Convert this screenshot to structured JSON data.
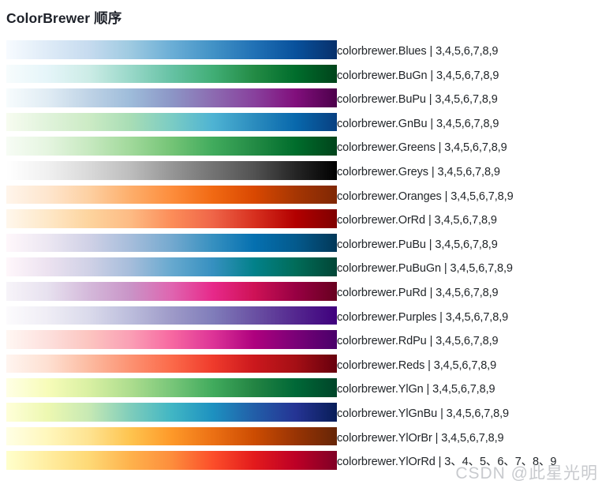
{
  "page": {
    "title": "ColorBrewer 顺序"
  },
  "watermark": {
    "text": "CSDN @此星光明"
  },
  "chart_data": {
    "type": "table",
    "title": "ColorBrewer 顺序",
    "legend_note": "each row = sequential colorbrewer ramp drawn light-to-dark, left-to-right",
    "palettes": [
      {
        "name": "colorbrewer.Blues",
        "label": "colorbrewer.Blues | 3,4,5,6,7,8,9",
        "classes": "3,4,5,6,7,8,9",
        "colors": [
          "#f7fbff",
          "#deebf7",
          "#c6dbef",
          "#9ecae1",
          "#6baed6",
          "#4292c6",
          "#2171b5",
          "#08519c",
          "#08306b"
        ]
      },
      {
        "name": "colorbrewer.BuGn",
        "label": "colorbrewer.BuGn | 3,4,5,6,7,8,9",
        "classes": "3,4,5,6,7,8,9",
        "colors": [
          "#f7fcfd",
          "#e5f5f9",
          "#ccece6",
          "#99d8c9",
          "#66c2a4",
          "#41ae76",
          "#238b45",
          "#006d2c",
          "#00441b"
        ]
      },
      {
        "name": "colorbrewer.BuPu",
        "label": "colorbrewer.BuPu | 3,4,5,6,7,8,9",
        "classes": "3,4,5,6,7,8,9",
        "colors": [
          "#f7fcfd",
          "#e0ecf4",
          "#bfd3e6",
          "#9ebcda",
          "#8c96c6",
          "#8c6bb1",
          "#88419d",
          "#810f7c",
          "#4d004b"
        ]
      },
      {
        "name": "colorbrewer.GnBu",
        "label": "colorbrewer.GnBu | 3,4,5,6,7,8,9",
        "classes": "3,4,5,6,7,8,9",
        "colors": [
          "#f7fcf0",
          "#e0f3db",
          "#ccebc5",
          "#a8ddb5",
          "#7bccc4",
          "#4eb3d3",
          "#2b8cbe",
          "#0868ac",
          "#084081"
        ]
      },
      {
        "name": "colorbrewer.Greens",
        "label": "colorbrewer.Greens | 3,4,5,6,7,8,9",
        "classes": "3,4,5,6,7,8,9",
        "colors": [
          "#f7fcf5",
          "#e5f5e0",
          "#c7e9c0",
          "#a1d99b",
          "#74c476",
          "#41ab5d",
          "#238b45",
          "#006d2c",
          "#00441b"
        ]
      },
      {
        "name": "colorbrewer.Greys",
        "label": "colorbrewer.Greys | 3,4,5,6,7,8,9",
        "classes": "3,4,5,6,7,8,9",
        "colors": [
          "#ffffff",
          "#f0f0f0",
          "#d9d9d9",
          "#bdbdbd",
          "#969696",
          "#737373",
          "#525252",
          "#252525",
          "#000000"
        ]
      },
      {
        "name": "colorbrewer.Oranges",
        "label": "colorbrewer.Oranges | 3,4,5,6,7,8,9",
        "classes": "3,4,5,6,7,8,9",
        "colors": [
          "#fff5eb",
          "#fee6ce",
          "#fdd0a2",
          "#fdae6b",
          "#fd8d3c",
          "#f16913",
          "#d94801",
          "#a63603",
          "#7f2704"
        ]
      },
      {
        "name": "colorbrewer.OrRd",
        "label": "colorbrewer.OrRd | 3,4,5,6,7,8,9",
        "classes": "3,4,5,6,7,8,9",
        "colors": [
          "#fff7ec",
          "#fee8c8",
          "#fdd49e",
          "#fdbb84",
          "#fc8d59",
          "#ef6548",
          "#d7301f",
          "#b30000",
          "#7f0000"
        ]
      },
      {
        "name": "colorbrewer.PuBu",
        "label": "colorbrewer.PuBu | 3,4,5,6,7,8,9",
        "classes": "3,4,5,6,7,8,9",
        "colors": [
          "#fff7fb",
          "#ece7f2",
          "#d0d1e6",
          "#a6bddb",
          "#74a9cf",
          "#3690c0",
          "#0570b0",
          "#045a8d",
          "#023858"
        ]
      },
      {
        "name": "colorbrewer.PuBuGn",
        "label": "colorbrewer.PuBuGn | 3,4,5,6,7,8,9",
        "classes": "3,4,5,6,7,8,9",
        "colors": [
          "#fff7fb",
          "#ece2f0",
          "#d0d1e6",
          "#a6bddb",
          "#67a9cf",
          "#3690c0",
          "#02818a",
          "#016c59",
          "#014636"
        ]
      },
      {
        "name": "colorbrewer.PuRd",
        "label": "colorbrewer.PuRd | 3,4,5,6,7,8,9",
        "classes": "3,4,5,6,7,8,9",
        "colors": [
          "#f7f4f9",
          "#e7e1ef",
          "#d4b9da",
          "#c994c7",
          "#df65b0",
          "#e7298a",
          "#ce1256",
          "#980043",
          "#67001f"
        ]
      },
      {
        "name": "colorbrewer.Purples",
        "label": "colorbrewer.Purples | 3,4,5,6,7,8,9",
        "classes": "3,4,5,6,7,8,9",
        "colors": [
          "#fcfbfd",
          "#efedf5",
          "#dadaeb",
          "#bcbddc",
          "#9e9ac8",
          "#807dba",
          "#6a51a3",
          "#54278f",
          "#3f007d"
        ]
      },
      {
        "name": "colorbrewer.RdPu",
        "label": "colorbrewer.RdPu | 3,4,5,6,7,8,9",
        "classes": "3,4,5,6,7,8,9",
        "colors": [
          "#fff7f3",
          "#fde0dd",
          "#fcc5c0",
          "#fa9fb5",
          "#f768a1",
          "#dd3497",
          "#ae017e",
          "#7a0177",
          "#49006a"
        ]
      },
      {
        "name": "colorbrewer.Reds",
        "label": "colorbrewer.Reds | 3,4,5,6,7,8,9",
        "classes": "3,4,5,6,7,8,9",
        "colors": [
          "#fff5f0",
          "#fee0d2",
          "#fcbba1",
          "#fc9272",
          "#fb6a4a",
          "#ef3b2c",
          "#cb181d",
          "#a50f15",
          "#67000d"
        ]
      },
      {
        "name": "colorbrewer.YlGn",
        "label": "colorbrewer.YlGn | 3,4,5,6,7,8,9",
        "classes": "3,4,5,6,7,8,9",
        "colors": [
          "#ffffe5",
          "#f7fcb9",
          "#d9f0a3",
          "#addd8e",
          "#78c679",
          "#41ab5d",
          "#238443",
          "#006837",
          "#004529"
        ]
      },
      {
        "name": "colorbrewer.YlGnBu",
        "label": "colorbrewer.YlGnBu | 3,4,5,6,7,8,9",
        "classes": "3,4,5,6,7,8,9",
        "colors": [
          "#ffffd9",
          "#edf8b1",
          "#c7e9b4",
          "#7fcdbb",
          "#41b6c4",
          "#1d91c0",
          "#225ea8",
          "#253494",
          "#081d58"
        ]
      },
      {
        "name": "colorbrewer.YlOrBr",
        "label": "colorbrewer.YlOrBr | 3,4,5,6,7,8,9",
        "classes": "3,4,5,6,7,8,9",
        "colors": [
          "#ffffe5",
          "#fff7bc",
          "#fee391",
          "#fec44f",
          "#fe9929",
          "#ec7014",
          "#cc4c02",
          "#993404",
          "#662506"
        ]
      },
      {
        "name": "colorbrewer.YlOrRd",
        "label": "colorbrewer.YlOrRd | 3、4、5、6、7、8、9",
        "classes": "3、4、5、6、7、8、9",
        "colors": [
          "#ffffcc",
          "#ffeda0",
          "#fed976",
          "#feb24c",
          "#fd8d3c",
          "#fc4e2a",
          "#e31a1c",
          "#bd0026",
          "#800026"
        ]
      }
    ]
  }
}
